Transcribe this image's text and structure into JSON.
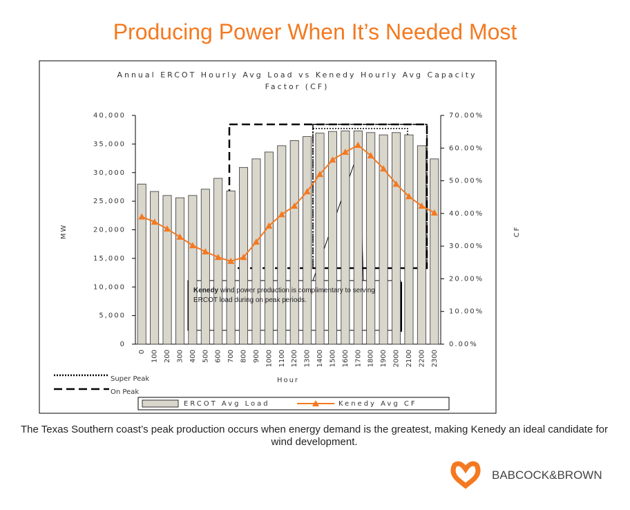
{
  "slide_title": "Producing Power When It’s Needed Most",
  "chart_data": {
    "type": "combo",
    "title": "Annual ERCOT Hourly Avg Load vs Kenedy Hourly Avg Capacity Factor (CF)",
    "x_label": "Hour",
    "y_label": "MW",
    "y2_label": "CF",
    "categories": [
      "0",
      "100",
      "200",
      "300",
      "400",
      "500",
      "600",
      "700",
      "800",
      "900",
      "1000",
      "1100",
      "1200",
      "1300",
      "1400",
      "1500",
      "1600",
      "1700",
      "1800",
      "1900",
      "2000",
      "2100",
      "2200",
      "2300"
    ],
    "series": [
      {
        "name": "ERCOT Avg Load",
        "type": "bar",
        "color": "#d9d6cc",
        "values": [
          28000,
          26700,
          26000,
          25600,
          26000,
          27100,
          29000,
          26800,
          30900,
          32400,
          33600,
          34700,
          35600,
          36300,
          36900,
          37200,
          37300,
          37300,
          37000,
          36600,
          37000,
          36600,
          34700,
          32400
        ]
      },
      {
        "name": "Kenedy Avg CF",
        "type": "line",
        "axis": "y2",
        "color": "#f47920",
        "values": [
          39,
          37.4,
          35.3,
          32.8,
          30.2,
          28.3,
          26.6,
          25.4,
          26.6,
          31.3,
          36.2,
          39.7,
          42.3,
          46.7,
          52,
          56.4,
          58.8,
          60.9,
          57.7,
          53.7,
          49,
          45.2,
          42.3,
          40.2
        ]
      }
    ],
    "ylim": [
      0,
      40000
    ],
    "yticks": [
      {
        "value": 0,
        "label": "0"
      },
      {
        "value": 5000,
        "label": "5,000"
      },
      {
        "value": 10000,
        "label": "10,000"
      },
      {
        "value": 15000,
        "label": "15,000"
      },
      {
        "value": 20000,
        "label": "20,000"
      },
      {
        "value": 25000,
        "label": "25,000"
      },
      {
        "value": 30000,
        "label": "30,000"
      },
      {
        "value": 35000,
        "label": "35,000"
      },
      {
        "value": 40000,
        "label": "40,000"
      }
    ],
    "y2lim": [
      0,
      70
    ],
    "y2ticks": [
      {
        "value": 0,
        "label": "0.00%"
      },
      {
        "value": 10,
        "label": "10.00%"
      },
      {
        "value": 20,
        "label": "20.00%"
      },
      {
        "value": 30,
        "label": "30.00%"
      },
      {
        "value": 40,
        "label": "40.00%"
      },
      {
        "value": 50,
        "label": "50.00%"
      },
      {
        "value": 60,
        "label": "60.00%"
      },
      {
        "value": 70,
        "label": "70.00%"
      }
    ],
    "legend": "bottom",
    "peak_legend": [
      "Super Peak",
      "On Peak"
    ],
    "annotation_bold": "Kenedy",
    "annotation": "wind power production is complimentary to serving ERCOT load during on peak periods."
  },
  "caption": "The Texas Southern coast’s peak production occurs when energy demand is the greatest, making Kenedy an ideal candidate for wind development.",
  "logo": "BABCOCK&BROWN"
}
